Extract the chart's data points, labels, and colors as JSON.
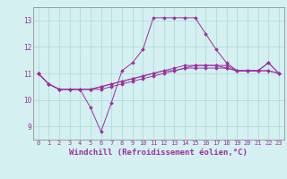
{
  "background_color": "#d4f0f0",
  "line_color": "#9b30a0",
  "grid_color": "#a8d8d8",
  "xlabel": "Windchill (Refroidissement éolien,°C)",
  "xlabel_fontsize": 6.5,
  "xtick_labels": [
    "0",
    "1",
    "2",
    "3",
    "4",
    "5",
    "6",
    "7",
    "8",
    "9",
    "10",
    "11",
    "12",
    "13",
    "14",
    "15",
    "16",
    "17",
    "18",
    "19",
    "20",
    "21",
    "22",
    "23"
  ],
  "ytick_labels": [
    "9",
    "10",
    "11",
    "12",
    "13"
  ],
  "ylim": [
    8.5,
    13.5
  ],
  "xlim": [
    -0.5,
    23.5
  ],
  "series": [
    [
      11.0,
      10.6,
      10.4,
      10.4,
      10.4,
      9.7,
      8.8,
      9.9,
      11.1,
      11.4,
      11.9,
      13.1,
      13.1,
      13.1,
      13.1,
      13.1,
      12.5,
      11.9,
      11.4,
      11.1,
      11.1,
      11.1,
      11.4,
      11.0
    ],
    [
      11.0,
      10.6,
      10.4,
      10.4,
      10.4,
      10.4,
      10.4,
      10.5,
      10.6,
      10.7,
      10.8,
      10.9,
      11.0,
      11.1,
      11.2,
      11.2,
      11.2,
      11.2,
      11.2,
      11.1,
      11.1,
      11.1,
      11.1,
      11.0
    ],
    [
      11.0,
      10.6,
      10.4,
      10.4,
      10.4,
      10.4,
      10.5,
      10.6,
      10.7,
      10.8,
      10.9,
      11.0,
      11.1,
      11.1,
      11.2,
      11.3,
      11.3,
      11.3,
      11.2,
      11.1,
      11.1,
      11.1,
      11.1,
      11.0
    ],
    [
      11.0,
      10.6,
      10.4,
      10.4,
      10.4,
      10.4,
      10.5,
      10.6,
      10.7,
      10.8,
      10.9,
      11.0,
      11.1,
      11.2,
      11.3,
      11.3,
      11.3,
      11.3,
      11.3,
      11.1,
      11.1,
      11.1,
      11.4,
      11.0
    ]
  ]
}
